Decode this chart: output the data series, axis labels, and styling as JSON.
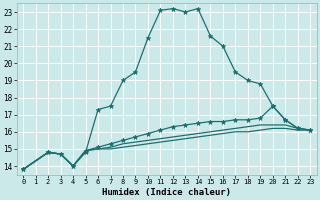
{
  "xlabel": "Humidex (Indice chaleur)",
  "xlim": [
    -0.5,
    23.5
  ],
  "ylim": [
    13.5,
    23.5
  ],
  "yticks": [
    14,
    15,
    16,
    17,
    18,
    19,
    20,
    21,
    22,
    23
  ],
  "xticks": [
    0,
    1,
    2,
    3,
    4,
    5,
    6,
    7,
    8,
    9,
    10,
    11,
    12,
    13,
    14,
    15,
    16,
    17,
    18,
    19,
    20,
    21,
    22,
    23
  ],
  "bg_color": "#cce9e9",
  "line_color": "#1a7070",
  "grid_color": "#ffffff",
  "curves": [
    {
      "x": [
        0,
        2,
        3,
        4,
        5,
        6,
        7,
        8,
        9,
        10,
        11,
        12,
        13,
        14,
        15,
        16,
        17,
        18,
        19,
        20,
        21,
        22,
        23
      ],
      "y": [
        13.8,
        14.8,
        14.7,
        14.0,
        14.8,
        17.3,
        17.5,
        19.0,
        19.5,
        21.5,
        23.1,
        23.2,
        23.0,
        23.2,
        21.6,
        21.0,
        19.5,
        19.0,
        18.8,
        17.5,
        16.7,
        16.2,
        16.1
      ],
      "marker": true
    },
    {
      "x": [
        0,
        2,
        3,
        4,
        5,
        6,
        7,
        8,
        9,
        10,
        11,
        12,
        13,
        14,
        15,
        16,
        17,
        18,
        19,
        20,
        21,
        22,
        23
      ],
      "y": [
        13.8,
        14.8,
        14.7,
        14.0,
        14.9,
        15.1,
        15.3,
        15.5,
        15.7,
        15.9,
        16.1,
        16.3,
        16.4,
        16.5,
        16.6,
        16.6,
        16.7,
        16.7,
        16.8,
        17.5,
        16.7,
        16.2,
        16.1
      ],
      "marker": true
    },
    {
      "x": [
        0,
        2,
        3,
        4,
        5,
        6,
        7,
        8,
        9,
        10,
        11,
        12,
        13,
        14,
        15,
        16,
        17,
        18,
        19,
        20,
        21,
        22,
        23
      ],
      "y": [
        13.8,
        14.8,
        14.7,
        14.0,
        14.9,
        15.0,
        15.1,
        15.3,
        15.4,
        15.5,
        15.6,
        15.7,
        15.8,
        15.9,
        16.0,
        16.1,
        16.2,
        16.3,
        16.4,
        16.4,
        16.4,
        16.2,
        16.1
      ],
      "marker": false
    },
    {
      "x": [
        0,
        2,
        3,
        4,
        5,
        6,
        7,
        8,
        9,
        10,
        11,
        12,
        13,
        14,
        15,
        16,
        17,
        18,
        19,
        20,
        21,
        22,
        23
      ],
      "y": [
        13.8,
        14.8,
        14.7,
        14.0,
        14.9,
        15.0,
        15.0,
        15.1,
        15.2,
        15.3,
        15.4,
        15.5,
        15.6,
        15.7,
        15.8,
        15.9,
        16.0,
        16.0,
        16.1,
        16.2,
        16.2,
        16.1,
        16.1
      ],
      "marker": false
    }
  ]
}
